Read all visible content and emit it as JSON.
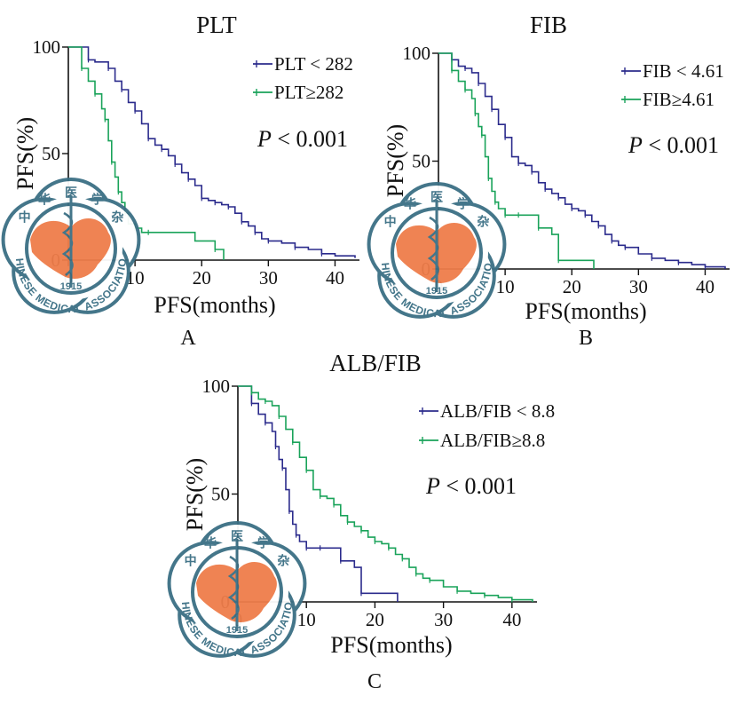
{
  "panels_letters": [
    "A",
    "B",
    "C"
  ],
  "watermark": {
    "text_top": "中 华 医 学 杂 志",
    "text_bottom": "CHINESE MEDICAL ASSOCIATION",
    "year": "1915"
  },
  "colors": {
    "blue": "#2b2b8c",
    "green": "#1aa35a",
    "axis": "#111111",
    "watermark_ring": "#3b6f84",
    "watermark_map": "#ef7d4a"
  },
  "chart_data": [
    {
      "type": "line",
      "title": "PLT",
      "xlabel": "PFS(months)",
      "ylabel": "PFS(%)",
      "xlim": [
        0,
        43
      ],
      "ylim": [
        0,
        100
      ],
      "xticks": [
        0,
        10,
        20,
        30,
        40
      ],
      "yticks": [
        0,
        50,
        100
      ],
      "p_value": {
        "italic": "P",
        "rest": " < 0.001"
      },
      "legend_placement": "top-right",
      "series": [
        {
          "name": "PLT < 282",
          "color": "#2b2b8c",
          "x": [
            0,
            3,
            4,
            6,
            7,
            8,
            9,
            10,
            11,
            12,
            13,
            14,
            15,
            16,
            17,
            18,
            19,
            20,
            21,
            22,
            23,
            24,
            25,
            26,
            27,
            28,
            29,
            30,
            32,
            34,
            36,
            38,
            40,
            43
          ],
          "y": [
            100,
            94,
            93,
            90,
            84,
            80,
            74,
            70,
            64,
            57,
            54,
            52,
            49,
            45,
            41,
            38,
            35,
            29,
            28,
            27,
            26,
            25,
            22,
            18,
            16,
            13,
            10,
            9,
            8,
            6,
            5,
            3,
            2,
            1
          ]
        },
        {
          "name": "PLT≥282",
          "color": "#1aa35a",
          "x": [
            0,
            2,
            3,
            4,
            5,
            5.5,
            6,
            6.5,
            7,
            7.5,
            8,
            8.5,
            9,
            10,
            11,
            12,
            19,
            22,
            23.3
          ],
          "y": [
            100,
            90,
            84,
            78,
            71,
            66,
            56,
            46,
            39,
            32,
            27,
            22,
            17,
            15,
            13,
            13,
            9,
            5,
            0
          ]
        }
      ]
    },
    {
      "type": "line",
      "title": "FIB",
      "xlabel": "PFS(months)",
      "ylabel": "PFS(%)",
      "xlim": [
        0,
        43
      ],
      "ylim": [
        0,
        100
      ],
      "xticks": [
        0,
        10,
        20,
        30,
        40
      ],
      "yticks": [
        0,
        50,
        100
      ],
      "p_value": {
        "italic": "P",
        "rest": " < 0.001"
      },
      "legend_placement": "top-right",
      "series": [
        {
          "name": "FIB < 4.61",
          "color": "#2b2b8c",
          "x": [
            0,
            2,
            3,
            4,
            5,
            6,
            7,
            8,
            9,
            10,
            11,
            12,
            13,
            14,
            15,
            16,
            17,
            18,
            19,
            20,
            21,
            22,
            23,
            24,
            25,
            26,
            27,
            28,
            30,
            32,
            34,
            36,
            38,
            40,
            43
          ],
          "y": [
            100,
            97,
            94,
            93,
            91,
            86,
            80,
            74,
            67,
            61,
            52,
            49,
            48,
            45,
            40,
            37,
            35,
            33,
            30,
            28,
            27,
            25,
            22,
            20,
            16,
            13,
            11,
            10,
            7,
            5,
            4,
            3,
            2,
            1,
            0
          ]
        },
        {
          "name": "FIB≥4.61",
          "color": "#1aa35a",
          "x": [
            0,
            2,
            3,
            4,
            5,
            5.5,
            6,
            6.5,
            7,
            7.5,
            8,
            8.5,
            9,
            10,
            11,
            12,
            14,
            15,
            17,
            18,
            22,
            23.3
          ],
          "y": [
            100,
            92,
            87,
            83,
            79,
            72,
            66,
            62,
            52,
            42,
            36,
            31,
            28,
            25,
            25,
            25,
            25,
            19,
            16,
            4,
            4,
            0
          ]
        }
      ]
    },
    {
      "type": "line",
      "title": "ALB/FIB",
      "xlabel": "PFS(months)",
      "ylabel": "PFS(%)",
      "xlim": [
        0,
        43
      ],
      "ylim": [
        0,
        100
      ],
      "xticks": [
        0,
        10,
        20,
        30,
        40
      ],
      "yticks": [
        0,
        50,
        100
      ],
      "p_value": {
        "italic": "P",
        "rest": " < 0.001"
      },
      "legend_placement": "top-right",
      "series": [
        {
          "name": "ALB/FIB < 8.8",
          "color": "#2b2b8c",
          "x": [
            0,
            2,
            3,
            4,
            5,
            5.5,
            6,
            6.5,
            7,
            7.5,
            8,
            8.5,
            9,
            10,
            11,
            12,
            14,
            15,
            17,
            18,
            22,
            23.3
          ],
          "y": [
            100,
            92,
            87,
            83,
            79,
            72,
            66,
            62,
            52,
            42,
            36,
            31,
            28,
            25,
            25,
            25,
            25,
            19,
            16,
            4,
            4,
            0
          ]
        },
        {
          "name": "ALB/FIB≥8.8",
          "color": "#1aa35a",
          "x": [
            0,
            2,
            3,
            4,
            5,
            6,
            7,
            8,
            9,
            10,
            11,
            12,
            13,
            14,
            15,
            16,
            17,
            18,
            19,
            20,
            21,
            22,
            23,
            24,
            25,
            26,
            27,
            28,
            30,
            32,
            34,
            36,
            38,
            40,
            43
          ],
          "y": [
            100,
            97,
            94,
            93,
            91,
            86,
            80,
            74,
            67,
            61,
            52,
            49,
            48,
            45,
            40,
            37,
            35,
            33,
            30,
            28,
            27,
            25,
            22,
            20,
            16,
            13,
            11,
            10,
            7,
            5,
            4,
            3,
            2,
            1,
            0
          ]
        }
      ]
    }
  ]
}
